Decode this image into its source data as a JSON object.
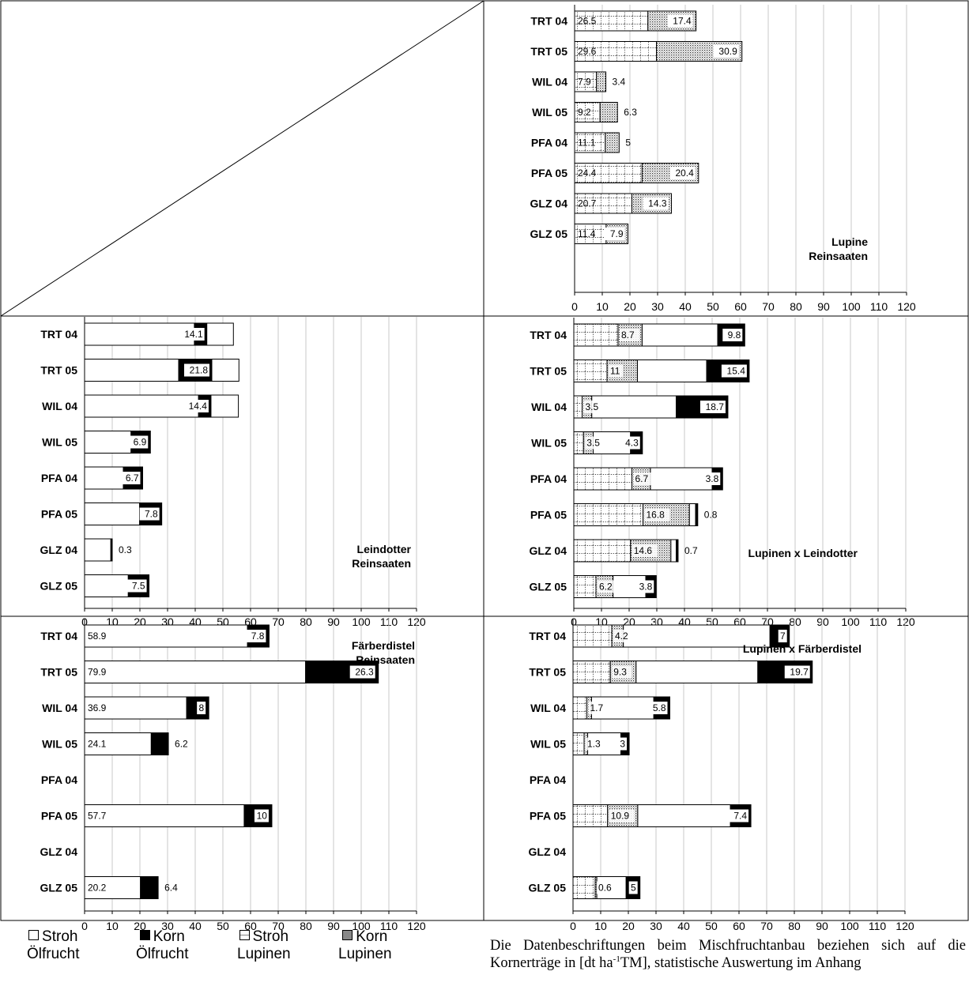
{
  "colors": {
    "stroh_oel": "#ffffff",
    "korn_oel": "#000000",
    "stroh_lup": "dotted-grid",
    "korn_lup": "dense-dots",
    "grid": "#c8c8c8"
  },
  "x_ticks": [
    "0",
    "10",
    "20",
    "30",
    "40",
    "50",
    "60",
    "70",
    "80",
    "90",
    "100",
    "110",
    "120"
  ],
  "legend": [
    {
      "line1": "Stroh",
      "line2": "Ölfrucht"
    },
    {
      "line1": "Korn",
      "line2": "Ölfrucht"
    },
    {
      "line1": "Stroh",
      "line2": "Lupinen"
    },
    {
      "line1": "Korn",
      "line2": "Lupinen"
    }
  ],
  "note": {
    "part1": "Die Datenbeschriftungen beim Mischfruchtanbau beziehen sich auf die Kornerträge in [dt ha",
    "sup": "-1",
    "part2": "TM], statistische Auswertung im Anhang"
  },
  "chart_data": [
    {
      "type": "bar",
      "orientation": "horizontal",
      "stacked": true,
      "title_lines": [
        "Lupine",
        "Reinsaaten"
      ],
      "categories": [
        "TRT 04",
        "TRT 05",
        "WIL 04",
        "WIL 05",
        "PFA 04",
        "PFA 05",
        "GLZ 04",
        "GLZ 05"
      ],
      "xlim": [
        0,
        120
      ],
      "series": [
        {
          "name": "Stroh Lupinen",
          "values": [
            26.5,
            29.6,
            7.9,
            9.2,
            11.1,
            24.4,
            20.7,
            11.4
          ]
        },
        {
          "name": "Korn Lupinen",
          "values": [
            17.4,
            30.9,
            3.4,
            6.3,
            5,
            20.4,
            14.3,
            7.9
          ]
        }
      ],
      "labels": [
        [
          "26.5",
          "17.4"
        ],
        [
          "29.6",
          "30.9"
        ],
        [
          "7.9",
          "3.4"
        ],
        [
          "9.2",
          "6.3"
        ],
        [
          "11.1",
          "5"
        ],
        [
          "24.4",
          "20.4"
        ],
        [
          "20.7",
          "14.3"
        ],
        [
          "11.4",
          "7.9"
        ]
      ]
    },
    {
      "type": "bar",
      "orientation": "horizontal",
      "stacked": true,
      "title_lines": [
        "Leindotter",
        "Reinsaaten"
      ],
      "categories": [
        "TRT 04",
        "TRT 05",
        "WIL 04",
        "WIL 05",
        "PFA 04",
        "PFA 05",
        "GLZ 04",
        "GLZ 05"
      ],
      "xlim": [
        0,
        120
      ],
      "series": [
        {
          "name": "Stroh Ölfrucht",
          "values": [
            39.7,
            34,
            41.2,
            16.8,
            14,
            19.9,
            9.5,
            15.8
          ]
        },
        {
          "name": "Korn Ölfrucht",
          "values": [
            4.5,
            12,
            4.5,
            7,
            7,
            8,
            0.5,
            7.5
          ]
        },
        {
          "name": "Stroh Ölfrucht",
          "values": [
            9.6,
            9.8,
            9.9,
            0,
            0,
            0,
            0,
            0
          ]
        }
      ],
      "labels": [
        [
          "39.7",
          "14.1"
        ],
        [
          "34",
          "21.8"
        ],
        [
          "41.2",
          "14.4"
        ],
        [
          "16.8",
          "6.9"
        ],
        [
          "14",
          "6.7"
        ],
        [
          "19.9",
          "7.8"
        ],
        [
          "9.5",
          "0.3"
        ],
        [
          "15.8",
          "7.5"
        ]
      ]
    },
    {
      "type": "bar",
      "orientation": "horizontal",
      "stacked": true,
      "title_lines": [
        "Lupinen x Leindotter"
      ],
      "categories": [
        "TRT 04",
        "TRT 05",
        "WIL 04",
        "WIL 05",
        "PFA 04",
        "PFA 05",
        "GLZ 04",
        "GLZ 05"
      ],
      "xlim": [
        0,
        120
      ],
      "series": [
        {
          "name": "Stroh Lupinen",
          "values": [
            16,
            12,
            3,
            3.5,
            21,
            25,
            20.5,
            8
          ]
        },
        {
          "name": "Korn Lupinen",
          "values": [
            8.7,
            11,
            3.5,
            3.5,
            6.7,
            16.8,
            14.6,
            6.2
          ]
        },
        {
          "name": "Stroh Ölfrucht",
          "values": [
            27.3,
            25,
            30.5,
            13.5,
            22.3,
            2.2,
            1.9,
            11.8
          ]
        },
        {
          "name": "Korn Ölfrucht",
          "values": [
            9.8,
            15.4,
            18.7,
            4.3,
            3.8,
            0.8,
            0.7,
            3.8
          ]
        }
      ],
      "labels": [
        [
          "8.7",
          "9.8"
        ],
        [
          "11",
          "15.4"
        ],
        [
          "3.5",
          "18.7"
        ],
        [
          "3.5",
          "4.3"
        ],
        [
          "6.7",
          "3.8"
        ],
        [
          "16.8",
          "0.8"
        ],
        [
          "14.6",
          "0.7"
        ],
        [
          "6.2",
          "3.8"
        ]
      ]
    },
    {
      "type": "bar",
      "orientation": "horizontal",
      "stacked": true,
      "title_lines": [
        "Färberdistel",
        "Reinsaaten"
      ],
      "categories": [
        "TRT 04",
        "TRT 05",
        "WIL 04",
        "WIL 05",
        "PFA 04",
        "PFA 05",
        "GLZ 04",
        "GLZ 05"
      ],
      "xlim": [
        0,
        120
      ],
      "series": [
        {
          "name": "Stroh Ölfrucht",
          "values": [
            58.9,
            79.9,
            36.9,
            24.1,
            0,
            57.7,
            0,
            20.2
          ]
        },
        {
          "name": "Korn Ölfrucht",
          "values": [
            7.8,
            26.3,
            8,
            6.2,
            0,
            10,
            0,
            6.4
          ]
        }
      ],
      "labels": [
        [
          "58.9",
          "7.8"
        ],
        [
          "79.9",
          "26.3"
        ],
        [
          "36.9",
          "8"
        ],
        [
          "24.1",
          "6.2"
        ],
        [
          "",
          ""
        ],
        [
          "57.7",
          "10"
        ],
        [
          "",
          ""
        ],
        [
          "20.2",
          "6.4"
        ]
      ]
    },
    {
      "type": "bar",
      "orientation": "horizontal",
      "stacked": true,
      "title_lines": [
        "Lupinen x Färberdistel"
      ],
      "categories": [
        "TRT 04",
        "TRT 05",
        "WIL 04",
        "WIL 05",
        "PFA 04",
        "PFA 05",
        "GLZ 04",
        "GLZ 05"
      ],
      "xlim": [
        0,
        120
      ],
      "series": [
        {
          "name": "Stroh Lupinen",
          "values": [
            14,
            13.5,
            5,
            4,
            0,
            12.5,
            0,
            8
          ]
        },
        {
          "name": "Korn Lupinen",
          "values": [
            4.2,
            9.3,
            1.7,
            1.3,
            0,
            10.9,
            0,
            0.6
          ]
        },
        {
          "name": "Stroh Ölfrucht",
          "values": [
            53,
            44,
            22.5,
            12,
            0,
            33.5,
            0,
            10.6
          ]
        },
        {
          "name": "Korn Ölfrucht",
          "values": [
            7,
            19.7,
            5.8,
            3,
            0,
            7.4,
            0,
            5
          ]
        }
      ],
      "labels": [
        [
          "4.2",
          "7"
        ],
        [
          "9.3",
          "19.7"
        ],
        [
          "1.7",
          "5.8"
        ],
        [
          "1.3",
          "3"
        ],
        [
          "",
          ""
        ],
        [
          "10.9",
          "7.4"
        ],
        [
          "",
          ""
        ],
        [
          "0.6",
          "5"
        ]
      ]
    }
  ]
}
